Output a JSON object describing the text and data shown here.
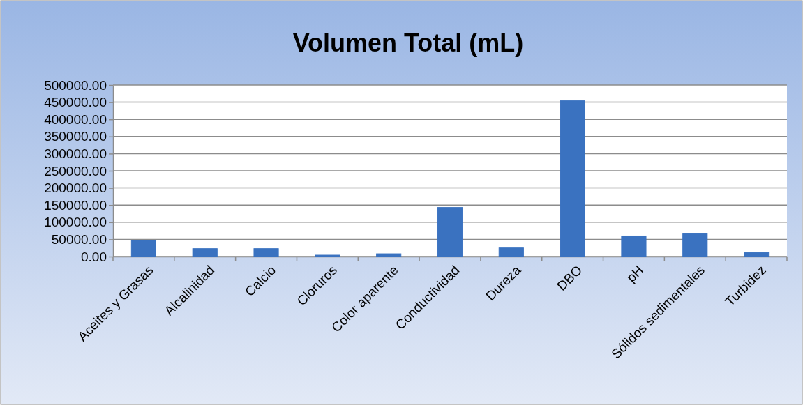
{
  "chart_data": {
    "type": "bar",
    "title": "Volumen Total (mL)",
    "categories": [
      "Aceites y Grasas",
      "Alcalinidad",
      "Calcio",
      "Cloruros",
      "Color aparente",
      "Conductividad",
      "Dureza",
      "DBO",
      "pH",
      "Sólidos sedimentales",
      "Turbidez"
    ],
    "values": [
      47000,
      23000,
      23000,
      4000,
      8000,
      143000,
      25000,
      454000,
      60000,
      68000,
      12000
    ],
    "color": "#3a72c0",
    "ylim": [
      0,
      500000
    ],
    "yticks": [
      {
        "value": 0,
        "label": "0.00"
      },
      {
        "value": 50000,
        "label": "50000.00"
      },
      {
        "value": 100000,
        "label": "100000.00"
      },
      {
        "value": 150000,
        "label": "150000.00"
      },
      {
        "value": 200000,
        "label": "200000.00"
      },
      {
        "value": 250000,
        "label": "250000.00"
      },
      {
        "value": 300000,
        "label": "300000.00"
      },
      {
        "value": 350000,
        "label": "350000.00"
      },
      {
        "value": 400000,
        "label": "400000.00"
      },
      {
        "value": 450000,
        "label": "450000.00"
      },
      {
        "value": 500000,
        "label": "500000.00"
      }
    ],
    "grid": "y"
  }
}
